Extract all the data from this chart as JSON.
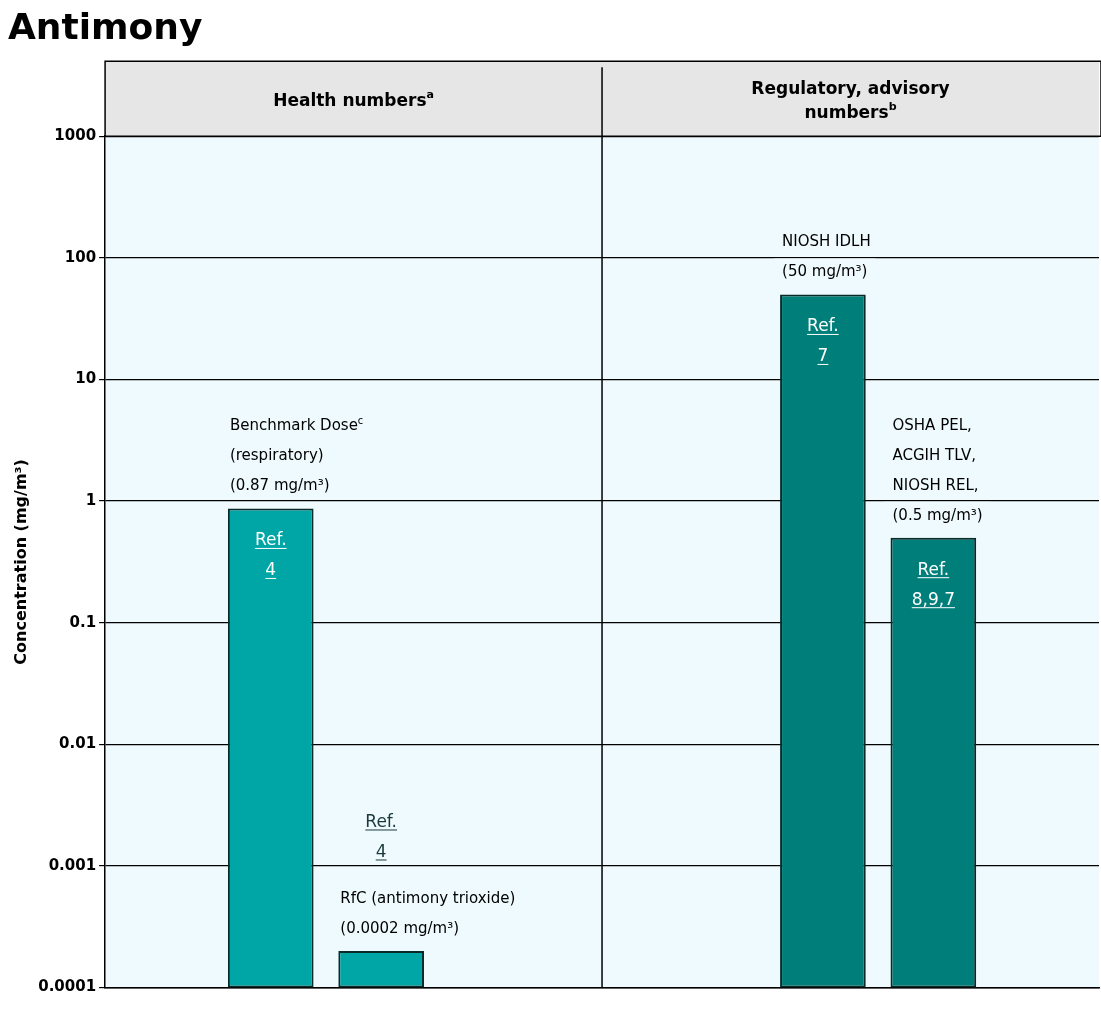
{
  "chart_data": {
    "type": "bar",
    "title": "Antimony",
    "ylabel": "Concentration (mg/m³)",
    "categories": [
      null,
      null,
      null,
      null,
      null,
      null,
      null,
      null,
      null
    ],
    "values": [
      null,
      0.87,
      0.0002,
      null,
      null,
      null,
      50,
      0.5,
      null
    ],
    "colors": [
      "#00a6a6",
      "#00a6a6",
      "#00a6a6",
      "#007f7a",
      "#007f7a",
      "#007f7a",
      "#007f7a",
      "#007f7a",
      "#007f7a"
    ],
    "value_labels": [
      null,
      "Benchmark Dose$^{c}$\n(respiratory)\n(0.87 mg/m³)",
      "RfC (antimony trioxide)\n(0.0002 mg/m³)",
      null,
      null,
      null,
      "NIOSH IDLH\n(50 mg/m³)",
      "OSHA PEL,\nACGIH TLV,\nNIOSH REL,\n(0.5 mg/m³)",
      null
    ],
    "annotations": [
      "Health numbers$^{a}$",
      "Regulatory, advisory\nnumbers$^{b}$",
      "Ref.\n4",
      "Ref.\n4",
      "Ref.\n7",
      "Ref.\n8,9,7"
    ],
    "log": "y",
    "ylim": [
      0.0001,
      1000
    ],
    "yticks": [
      0.0001,
      0.001,
      0.01,
      0.1,
      1,
      10,
      100,
      1000
    ],
    "grid": "y",
    "legend": false
  }
}
